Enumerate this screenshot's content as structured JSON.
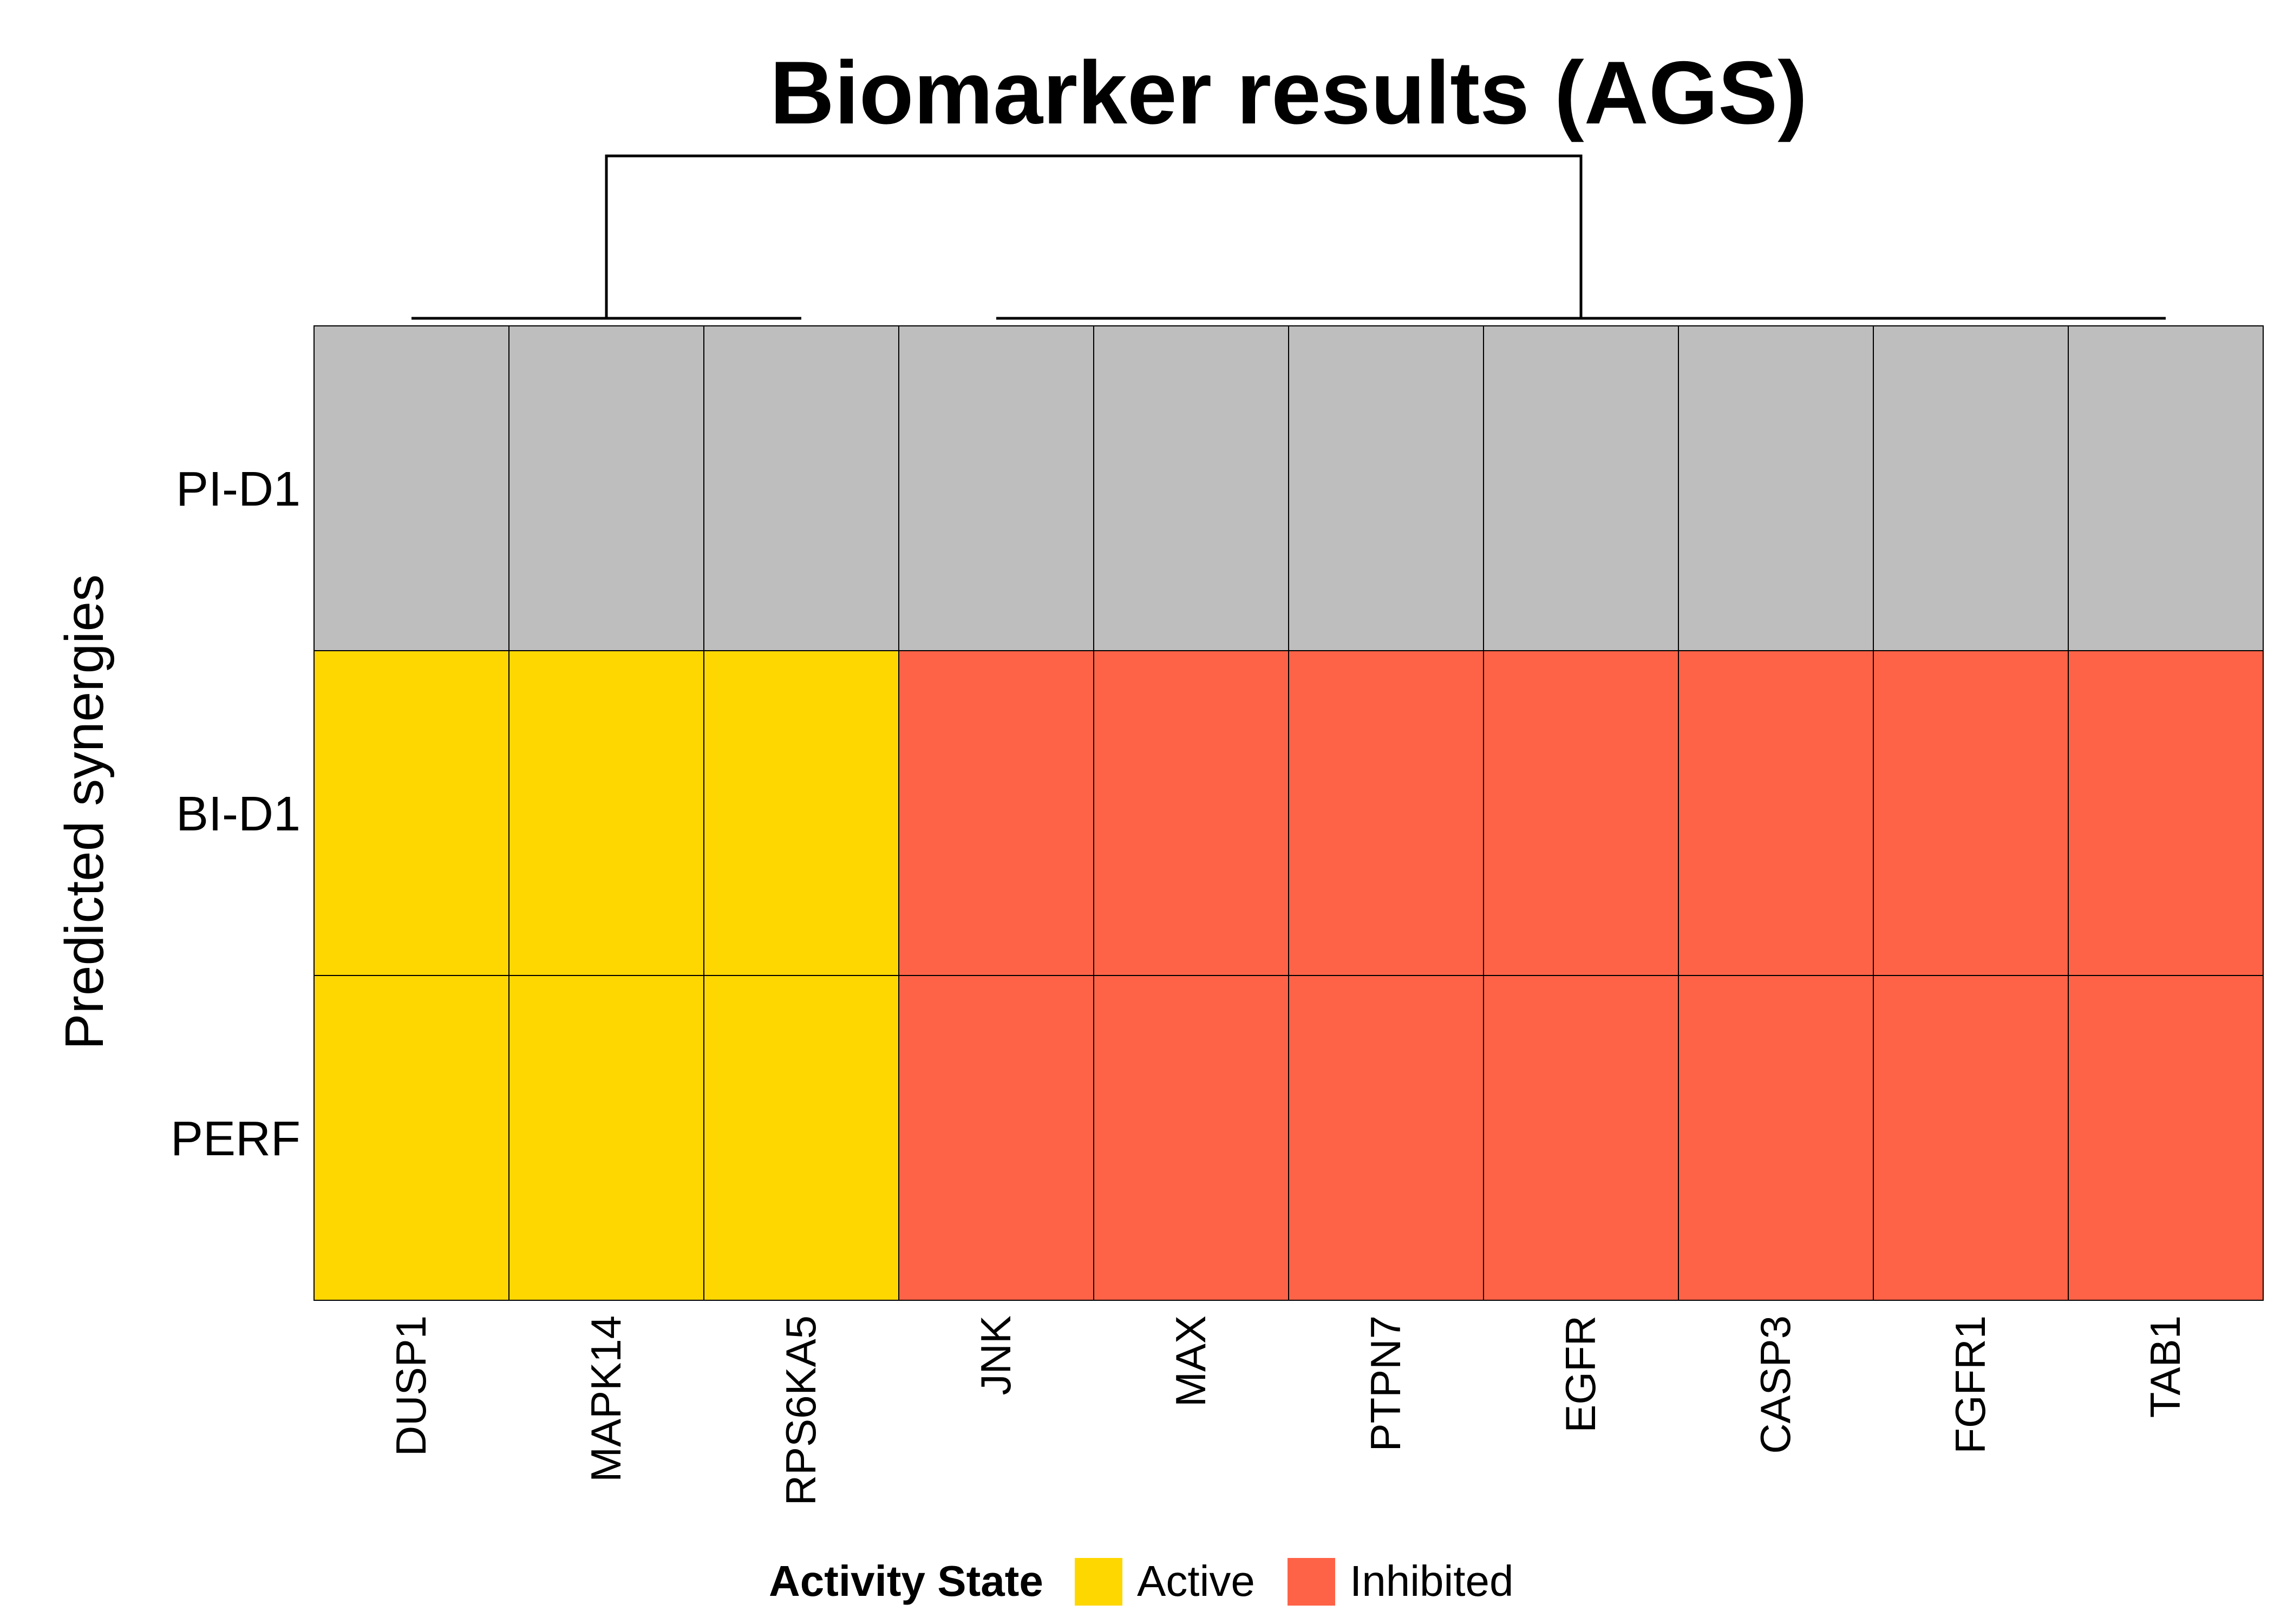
{
  "chart_data": {
    "type": "heatmap",
    "title": "Biomarker results (AGS)",
    "ylabel": "Predicted synergies",
    "xlabel": "",
    "rows": [
      "PI-D1",
      "BI-D1",
      "PERF"
    ],
    "columns": [
      "DUSP1",
      "MAPK14",
      "RPS6KA5",
      "JNK",
      "MAX",
      "PTPN7",
      "EGFR",
      "CASP3",
      "FGFR1",
      "TAB1"
    ],
    "values": [
      [
        "NA",
        "NA",
        "NA",
        "NA",
        "NA",
        "NA",
        "NA",
        "NA",
        "NA",
        "NA"
      ],
      [
        "Active",
        "Active",
        "Active",
        "Inhibited",
        "Inhibited",
        "Inhibited",
        "Inhibited",
        "Inhibited",
        "Inhibited",
        "Inhibited"
      ],
      [
        "Active",
        "Active",
        "Active",
        "Inhibited",
        "Inhibited",
        "Inhibited",
        "Inhibited",
        "Inhibited",
        "Inhibited",
        "Inhibited"
      ]
    ],
    "column_dendrogram": {
      "clusters": [
        [
          "DUSP1",
          "MAPK14",
          "RPS6KA5"
        ],
        [
          "JNK",
          "MAX",
          "PTPN7",
          "EGFR",
          "CASP3",
          "FGFR1",
          "TAB1"
        ]
      ]
    },
    "legend": {
      "title": "Activity State",
      "position": "bottom",
      "entries": [
        {
          "label": "Active",
          "color": "#FFD700"
        },
        {
          "label": "Inhibited",
          "color": "#FF6347"
        }
      ]
    },
    "colors": {
      "Active": "#FFD700",
      "Inhibited": "#FF6347",
      "NA": "#BEBEBE"
    }
  }
}
